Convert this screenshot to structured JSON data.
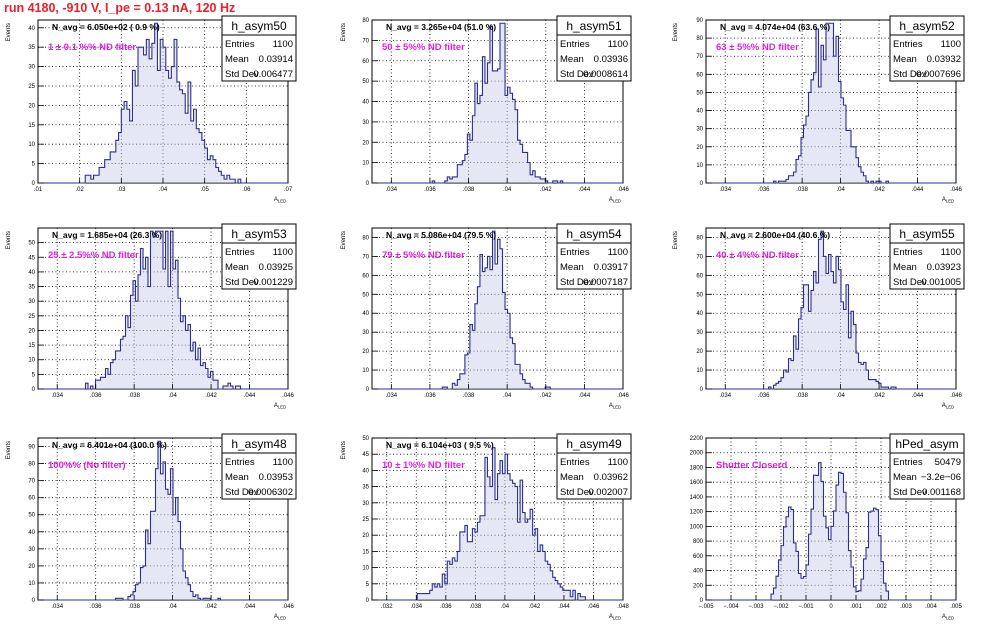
{
  "header": {
    "run_title": "run 4180,  -910 V, I_pe = 0.13 nA, 120 Hz"
  },
  "colors": {
    "histogram": "#2b2f8f",
    "fill": "#c7c9e6",
    "annotation": "#e21fe0",
    "title": "#e8202a"
  },
  "stats_labels": {
    "entries": "Entries",
    "mean": "Mean",
    "std": "Std Dev"
  },
  "chart_data": [
    {
      "type": "bar",
      "name": "h_asym50",
      "xlabel": "A_{LED}",
      "ylabel": "Events",
      "xlim": [
        0.01,
        0.07
      ],
      "ylim": [
        0,
        42
      ],
      "xticks": [
        0.01,
        0.02,
        0.03,
        0.04,
        0.05,
        0.06,
        0.07
      ],
      "yticks": [
        0,
        5,
        10,
        15,
        20,
        25,
        30,
        35,
        40
      ],
      "navg": "N_avg = 6.050e+02 ( 0.9 %)",
      "filter": "1 ± 0.1 %% ND filter",
      "stats": {
        "entries": "1100",
        "mean": "0.03914",
        "std": "0.006477"
      },
      "dist": {
        "mean": 0.03914,
        "sd": 0.006477,
        "bins": 90,
        "peak": 39,
        "lo": 0.02,
        "hi": 0.06,
        "seed": 11
      }
    },
    {
      "type": "bar",
      "name": "h_asym51",
      "xlabel": "A_{LED}",
      "ylabel": "Events",
      "xlim": [
        0.033,
        0.046
      ],
      "ylim": [
        0,
        80
      ],
      "xticks": [
        0.034,
        0.036,
        0.038,
        0.04,
        0.042,
        0.044,
        0.046
      ],
      "yticks": [
        0,
        10,
        20,
        30,
        40,
        50,
        60,
        70,
        80
      ],
      "navg": "N_avg = 3.265e+04 (51.0 %)",
      "filter": "50 ± 5%% ND filter",
      "stats": {
        "entries": "1100",
        "mean": "0.03936",
        "std": "0.0008614"
      },
      "dist": {
        "mean": 0.03936,
        "sd": 0.0008614,
        "bins": 100,
        "peak": 74,
        "lo": 0.036,
        "hi": 0.043,
        "seed": 23
      }
    },
    {
      "type": "bar",
      "name": "h_asym52",
      "xlabel": "A_{LED}",
      "ylabel": "Events",
      "xlim": [
        0.033,
        0.046
      ],
      "ylim": [
        0,
        90
      ],
      "xticks": [
        0.034,
        0.036,
        0.038,
        0.04,
        0.042,
        0.044,
        0.046
      ],
      "yticks": [
        0,
        10,
        20,
        30,
        40,
        50,
        60,
        70,
        80,
        90
      ],
      "navg": "N_avg = 4.074e+04 (63.6 %)",
      "filter": "63 ± 5%% ND filter",
      "stats": {
        "entries": "1100",
        "mean": "0.03932",
        "std": "0.0007696"
      },
      "dist": {
        "mean": 0.03932,
        "sd": 0.0007696,
        "bins": 100,
        "peak": 86,
        "lo": 0.0365,
        "hi": 0.0425,
        "seed": 37
      }
    },
    {
      "type": "bar",
      "name": "h_asym53",
      "xlabel": "A_{LED}",
      "ylabel": "Events",
      "xlim": [
        0.033,
        0.046
      ],
      "ylim": [
        0,
        55
      ],
      "xticks": [
        0.034,
        0.036,
        0.038,
        0.04,
        0.042,
        0.044,
        0.046
      ],
      "yticks": [
        0,
        5,
        10,
        15,
        20,
        25,
        30,
        35,
        40,
        45,
        50
      ],
      "navg": "N_avg = 1.685e+04 (26.3 %)",
      "filter": "25 ± 2.5%% ND filter",
      "stats": {
        "entries": "1100",
        "mean": "0.03925",
        "std": "0.001229"
      },
      "dist": {
        "mean": 0.03925,
        "sd": 0.001229,
        "bins": 100,
        "peak": 52,
        "lo": 0.0355,
        "hi": 0.0435,
        "seed": 41
      }
    },
    {
      "type": "bar",
      "name": "h_asym54",
      "xlabel": "A_{LED}",
      "ylabel": "Events",
      "xlim": [
        0.033,
        0.046
      ],
      "ylim": [
        0,
        85
      ],
      "xticks": [
        0.034,
        0.036,
        0.038,
        0.04,
        0.042,
        0.044,
        0.046
      ],
      "yticks": [
        0,
        10,
        20,
        30,
        40,
        50,
        60,
        70,
        80
      ],
      "navg": "N_avg = 5.086e+04 (79.5 %)",
      "filter": "79 ± 5%% ND filter",
      "stats": {
        "entries": "1100",
        "mean": "0.03917",
        "std": "0.0007187"
      },
      "dist": {
        "mean": 0.03917,
        "sd": 0.0007187,
        "bins": 100,
        "peak": 81,
        "lo": 0.0365,
        "hi": 0.0425,
        "seed": 53
      }
    },
    {
      "type": "bar",
      "name": "h_asym55",
      "xlabel": "A_{LED}",
      "ylabel": "Events",
      "xlim": [
        0.033,
        0.046
      ],
      "ylim": [
        0,
        85
      ],
      "xticks": [
        0.034,
        0.036,
        0.038,
        0.04,
        0.042,
        0.044,
        0.046
      ],
      "yticks": [
        0,
        10,
        20,
        30,
        40,
        50,
        60,
        70,
        80
      ],
      "navg": "N_avg = 2.600e+04 (40.6 %)",
      "filter": "40 ± 4%% ND filter",
      "stats": {
        "entries": "1100",
        "mean": "0.03923",
        "std": "0.001005"
      },
      "dist": {
        "mean": 0.03923,
        "sd": 0.001005,
        "bins": 100,
        "peak": 82,
        "lo": 0.036,
        "hi": 0.043,
        "seed": 67
      }
    },
    {
      "type": "bar",
      "name": "h_asym48",
      "xlabel": "A_{LED}",
      "ylabel": "Events",
      "xlim": [
        0.033,
        0.046
      ],
      "ylim": [
        0,
        95
      ],
      "xticks": [
        0.034,
        0.036,
        0.038,
        0.04,
        0.042,
        0.044,
        0.046
      ],
      "yticks": [
        0,
        10,
        20,
        30,
        40,
        50,
        60,
        70,
        80,
        90
      ],
      "navg": "N_avg = 6.401e+04 (100.0 %)",
      "filter": "100%% (No filter)",
      "stats": {
        "entries": "1100",
        "mean": "0.03953",
        "std": "0.0006302"
      },
      "dist": {
        "mean": 0.03953,
        "sd": 0.0006302,
        "bins": 100,
        "peak": 88,
        "lo": 0.037,
        "hi": 0.0425,
        "seed": 71
      }
    },
    {
      "type": "bar",
      "name": "h_asym49",
      "xlabel": "A_{LED}",
      "ylabel": "Events",
      "xlim": [
        0.031,
        0.048
      ],
      "ylim": [
        0,
        50
      ],
      "xticks": [
        0.032,
        0.034,
        0.036,
        0.038,
        0.04,
        0.042,
        0.044,
        0.046,
        0.048
      ],
      "yticks": [
        0,
        5,
        10,
        15,
        20,
        25,
        30,
        35,
        40,
        45,
        50
      ],
      "navg": "N_avg = 6.104e+03 ( 9.5 %)",
      "filter": "10 ± 1%% ND filter",
      "stats": {
        "entries": "1100",
        "mean": "0.03962",
        "std": "0.002007"
      },
      "dist": {
        "mean": 0.03962,
        "sd": 0.002007,
        "bins": 100,
        "peak": 40,
        "lo": 0.034,
        "hi": 0.0455,
        "seed": 83
      }
    },
    {
      "type": "bar",
      "name": "hPed_asym",
      "xlabel": "A_{LED}",
      "ylabel": "",
      "xlim": [
        -0.005,
        0.005
      ],
      "ylim": [
        0,
        2200
      ],
      "xticks": [
        -0.005,
        -0.004,
        -0.003,
        -0.002,
        -0.001,
        0,
        0.001,
        0.002,
        0.003,
        0.004,
        0.005
      ],
      "yticks": [
        0,
        200,
        400,
        600,
        800,
        1000,
        1200,
        1400,
        1600,
        1800,
        2000,
        2200
      ],
      "navg": "",
      "filter": "Shutter Closerd",
      "stats": {
        "entries": "50479",
        "mean": "−3.2e−06",
        "std": "0.001168"
      },
      "dist": {
        "multi": [
          {
            "mean": -0.0017,
            "sd": 0.00028,
            "amp": 1280
          },
          {
            "mean": -0.0005,
            "sd": 0.00028,
            "amp": 1800
          },
          {
            "mean": 0.0004,
            "sd": 0.00025,
            "amp": 2050
          },
          {
            "mean": 0.0017,
            "sd": 0.00025,
            "amp": 1320
          }
        ],
        "bins": 100,
        "lo": -0.0024,
        "hi": 0.0025,
        "seed": 97,
        "base": 820
      }
    }
  ]
}
